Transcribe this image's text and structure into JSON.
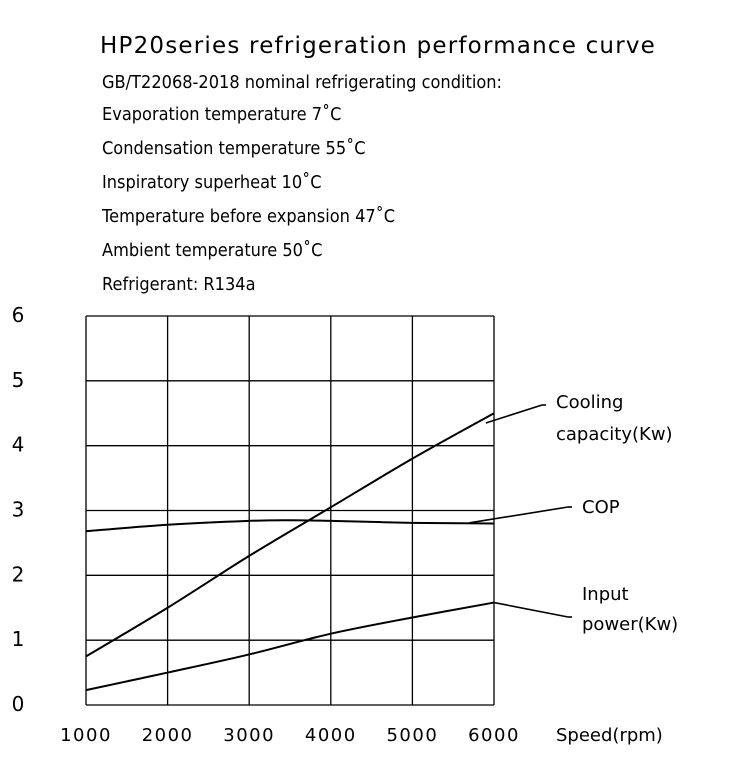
{
  "header": {
    "title": "HP20series refrigeration performance curve",
    "lines": [
      "GB/T22068-2018 nominal refrigerating condition:",
      "Evaporation temperature 7˚C",
      "Condensation   temperature 55˚C",
      "Inspiratory superheat 10˚C",
      "Temperature before expansion 47˚C",
      "Ambient   temperature 50˚C",
      "Refrigerant: R134a"
    ]
  },
  "chart_data": {
    "type": "line",
    "xlabel": "Speed(rpm)",
    "ylabel": "",
    "xlim": [
      1000,
      6000
    ],
    "ylim": [
      0,
      6
    ],
    "x_ticks": [
      "1000",
      "2000",
      "3000",
      "4000",
      "5000",
      "6000"
    ],
    "y_ticks": [
      "0",
      "1",
      "2",
      "3",
      "4",
      "5",
      "6"
    ],
    "grid": true,
    "series": [
      {
        "name": "Cooling capacity(Kw)",
        "label_lines": [
          "Cooling",
          "capacity(Kw)"
        ],
        "x": [
          1000,
          2000,
          3000,
          4000,
          5000,
          6000
        ],
        "y": [
          0.75,
          1.5,
          2.3,
          3.05,
          3.8,
          4.5
        ]
      },
      {
        "name": "COP",
        "label_lines": [
          "COP"
        ],
        "x": [
          1000,
          2000,
          3000,
          3500,
          4000,
          5000,
          6000
        ],
        "y": [
          2.68,
          2.78,
          2.84,
          2.85,
          2.84,
          2.81,
          2.8
        ]
      },
      {
        "name": "Input power(Kw)",
        "label_lines": [
          "Input",
          "power(Kw)"
        ],
        "x": [
          1000,
          2000,
          3000,
          4000,
          5000,
          6000
        ],
        "y": [
          0.23,
          0.5,
          0.78,
          1.1,
          1.35,
          1.58
        ]
      }
    ]
  }
}
